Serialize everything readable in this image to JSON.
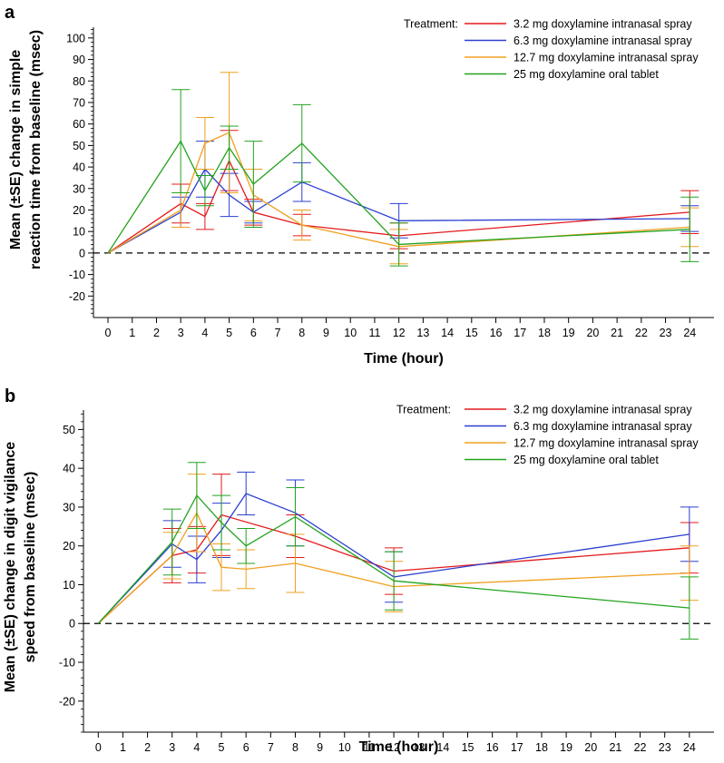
{
  "chart_data": [
    {
      "panel_label": "a",
      "type": "line",
      "xlabel": "Time (hour)",
      "ylabel_lines": [
        "Mean (±SE) change in simple",
        "reaction time from baseline (msec)"
      ],
      "xlim": [
        -0.6,
        25
      ],
      "ylim": [
        -30,
        105
      ],
      "x_ticks": [
        0,
        1,
        2,
        3,
        4,
        5,
        6,
        7,
        8,
        9,
        10,
        11,
        12,
        13,
        14,
        15,
        16,
        17,
        18,
        19,
        20,
        21,
        22,
        23,
        24
      ],
      "y_ticks": [
        -20,
        -10,
        0,
        10,
        20,
        30,
        40,
        50,
        60,
        70,
        80,
        90,
        100
      ],
      "baseline": 0,
      "legend_title": "Treatment:",
      "series": [
        {
          "name": "3.2 mg doxylamine intranasal spray",
          "color": "#e41a1c",
          "x": [
            0,
            3,
            4,
            5,
            6,
            8,
            12,
            24
          ],
          "y": [
            0,
            23,
            17,
            43,
            19,
            13,
            8,
            19
          ],
          "err": [
            0,
            9,
            6,
            14,
            6,
            5,
            6,
            10
          ]
        },
        {
          "name": "6.3 mg doxylamine intranasal spray",
          "color": "#2b3fd0",
          "x": [
            0,
            3,
            4,
            5,
            6,
            8,
            12,
            24
          ],
          "y": [
            0,
            19,
            39,
            27,
            19,
            33,
            15,
            16
          ],
          "err": [
            0,
            7,
            13,
            10,
            5,
            9,
            8,
            6
          ]
        },
        {
          "name": "12.7 mg doxylamine intranasal spray",
          "color": "#f0a020",
          "x": [
            0,
            3,
            4,
            5,
            6,
            8,
            12,
            24
          ],
          "y": [
            0,
            20,
            51,
            56,
            27,
            13,
            3,
            12
          ],
          "err": [
            0,
            8,
            12,
            28,
            12,
            7,
            8,
            9
          ]
        },
        {
          "name": "25 mg doxylamine oral tablet",
          "color": "#23a31f",
          "x": [
            0,
            3,
            4,
            5,
            6,
            8,
            12,
            24
          ],
          "y": [
            0,
            52,
            29,
            49,
            32,
            51,
            4,
            11
          ],
          "err": [
            0,
            24,
            7,
            10,
            20,
            18,
            10,
            15
          ]
        }
      ]
    },
    {
      "panel_label": "b",
      "type": "line",
      "xlabel": "Time (hour)",
      "ylabel_lines": [
        "Mean (±SE) change in digit vigilance",
        "speed from baseline (msec)"
      ],
      "xlim": [
        -0.6,
        25
      ],
      "ylim": [
        -28,
        55
      ],
      "x_ticks": [
        0,
        1,
        2,
        3,
        4,
        5,
        6,
        7,
        8,
        9,
        10,
        11,
        12,
        13,
        14,
        15,
        16,
        17,
        18,
        19,
        20,
        21,
        22,
        23,
        24
      ],
      "y_ticks": [
        -20,
        -10,
        0,
        10,
        20,
        30,
        40,
        50
      ],
      "baseline": 0,
      "legend_title": "Treatment:",
      "series": [
        {
          "name": "3.2 mg doxylamine intranasal spray",
          "color": "#e41a1c",
          "x": [
            0,
            3,
            4,
            5,
            8,
            12,
            24
          ],
          "y": [
            0,
            17.5,
            19,
            28,
            22.5,
            13.5,
            19.5
          ],
          "err": [
            0,
            7,
            6,
            10.5,
            5.5,
            6,
            6.5
          ]
        },
        {
          "name": "6.3 mg doxylamine intranasal spray",
          "color": "#2b3fd0",
          "x": [
            0,
            3,
            4,
            5,
            6,
            8,
            12,
            24
          ],
          "y": [
            0,
            20.5,
            16.5,
            24,
            33.5,
            28.5,
            12,
            23
          ],
          "err": [
            0,
            6,
            6,
            7,
            5.5,
            8.5,
            6.5,
            7
          ]
        },
        {
          "name": "12.7 mg doxylamine intranasal spray",
          "color": "#f0a020",
          "x": [
            0,
            3,
            4,
            5,
            6,
            8,
            12,
            24
          ],
          "y": [
            0,
            17.5,
            28.5,
            14.5,
            14,
            15.5,
            9.5,
            13
          ],
          "err": [
            0,
            6,
            10,
            6,
            5,
            7.5,
            6.5,
            7
          ]
        },
        {
          "name": "25 mg doxylamine oral tablet",
          "color": "#23a31f",
          "x": [
            0,
            3,
            4,
            5,
            6,
            8,
            12,
            24
          ],
          "y": [
            0,
            21,
            33,
            26,
            20,
            27.5,
            11,
            4
          ],
          "err": [
            0,
            8.5,
            8.5,
            7,
            4.5,
            7.5,
            7.5,
            8
          ]
        }
      ]
    }
  ]
}
